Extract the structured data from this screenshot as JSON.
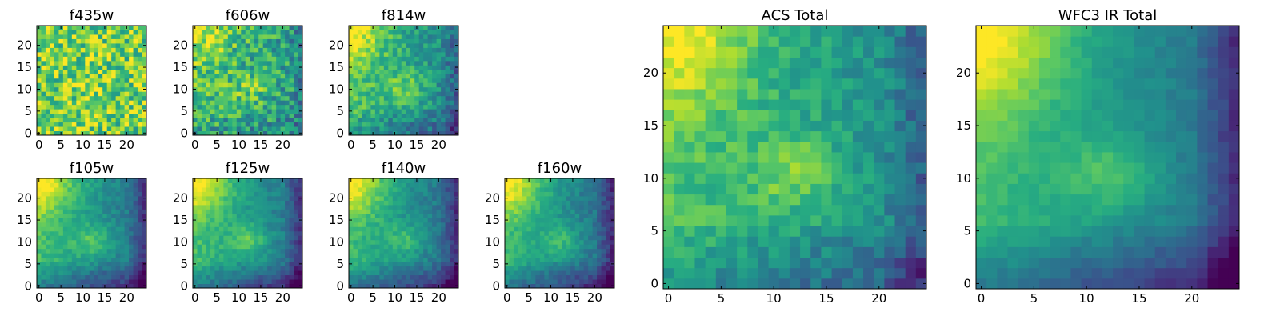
{
  "figure": {
    "background": "#ffffff",
    "colormap": [
      "#440154",
      "#3b528b",
      "#21918c",
      "#5ec962",
      "#fde725"
    ]
  },
  "chart_data": [
    {
      "id": "f435w",
      "type": "heatmap",
      "title": "f435w",
      "grid_size": 25,
      "xlim": [
        0,
        25
      ],
      "ylim": [
        0,
        25
      ],
      "xticks": [
        "0",
        "5",
        "10",
        "15",
        "20"
      ],
      "yticks": [
        "0",
        "5",
        "10",
        "15",
        "20"
      ],
      "model": {
        "base": 0.78,
        "corner": 0.05,
        "center": 0.05,
        "decay": 0.0,
        "noise": 0.26
      }
    },
    {
      "id": "f606w",
      "type": "heatmap",
      "title": "f606w",
      "grid_size": 25,
      "xlim": [
        0,
        25
      ],
      "ylim": [
        0,
        25
      ],
      "xticks": [
        "0",
        "5",
        "10",
        "15",
        "20"
      ],
      "yticks": [
        "0",
        "5",
        "10",
        "15",
        "20"
      ],
      "model": {
        "base": 0.7,
        "corner": 0.25,
        "center": 0.15,
        "decay": 0.25,
        "noise": 0.22
      }
    },
    {
      "id": "f814w",
      "type": "heatmap",
      "title": "f814w",
      "grid_size": 25,
      "xlim": [
        0,
        25
      ],
      "ylim": [
        0,
        25
      ],
      "xticks": [
        "0",
        "5",
        "10",
        "15",
        "20"
      ],
      "yticks": [
        "0",
        "5",
        "10",
        "15",
        "20"
      ],
      "model": {
        "base": 0.72,
        "corner": 0.3,
        "center": 0.2,
        "decay": 0.45,
        "noise": 0.14
      }
    },
    {
      "id": "f105w",
      "type": "heatmap",
      "title": "f105w",
      "grid_size": 25,
      "xlim": [
        0,
        25
      ],
      "ylim": [
        0,
        25
      ],
      "xticks": [
        "0",
        "5",
        "10",
        "15",
        "20"
      ],
      "yticks": [
        "0",
        "5",
        "10",
        "15",
        "20"
      ],
      "model": {
        "base": 0.7,
        "corner": 0.35,
        "center": 0.2,
        "decay": 0.6,
        "noise": 0.07
      }
    },
    {
      "id": "f125w",
      "type": "heatmap",
      "title": "f125w",
      "grid_size": 25,
      "xlim": [
        0,
        25
      ],
      "ylim": [
        0,
        25
      ],
      "xticks": [
        "0",
        "5",
        "10",
        "15",
        "20"
      ],
      "yticks": [
        "0",
        "5",
        "10",
        "15",
        "20"
      ],
      "model": {
        "base": 0.7,
        "corner": 0.35,
        "center": 0.22,
        "decay": 0.6,
        "noise": 0.07
      }
    },
    {
      "id": "f140w",
      "type": "heatmap",
      "title": "f140w",
      "grid_size": 25,
      "xlim": [
        0,
        25
      ],
      "ylim": [
        0,
        25
      ],
      "xticks": [
        "0",
        "5",
        "10",
        "15",
        "20"
      ],
      "yticks": [
        "0",
        "5",
        "10",
        "15",
        "20"
      ],
      "model": {
        "base": 0.68,
        "corner": 0.35,
        "center": 0.18,
        "decay": 0.6,
        "noise": 0.07
      }
    },
    {
      "id": "f160w",
      "type": "heatmap",
      "title": "f160w",
      "grid_size": 25,
      "xlim": [
        0,
        25
      ],
      "ylim": [
        0,
        25
      ],
      "xticks": [
        "0",
        "5",
        "10",
        "15",
        "20"
      ],
      "yticks": [
        "0",
        "5",
        "10",
        "15",
        "20"
      ],
      "model": {
        "base": 0.68,
        "corner": 0.35,
        "center": 0.18,
        "decay": 0.62,
        "noise": 0.07
      }
    },
    {
      "id": "acs-total",
      "type": "heatmap",
      "title": "ACS Total",
      "grid_size": 25,
      "xlim": [
        0,
        25
      ],
      "ylim": [
        0,
        25
      ],
      "xticks": [
        "0",
        "5",
        "10",
        "15",
        "20"
      ],
      "yticks": [
        "0",
        "5",
        "10",
        "15",
        "20"
      ],
      "model": {
        "base": 0.72,
        "corner": 0.3,
        "center": 0.22,
        "decay": 0.45,
        "noise": 0.1
      }
    },
    {
      "id": "wfc3-ir-total",
      "type": "heatmap",
      "title": "WFC3 IR Total",
      "grid_size": 25,
      "xlim": [
        0,
        25
      ],
      "ylim": [
        0,
        25
      ],
      "xticks": [
        "0",
        "5",
        "10",
        "15",
        "20"
      ],
      "yticks": [
        "0",
        "5",
        "10",
        "15",
        "20"
      ],
      "model": {
        "base": 0.7,
        "corner": 0.35,
        "center": 0.2,
        "decay": 0.62,
        "noise": 0.04
      }
    }
  ]
}
